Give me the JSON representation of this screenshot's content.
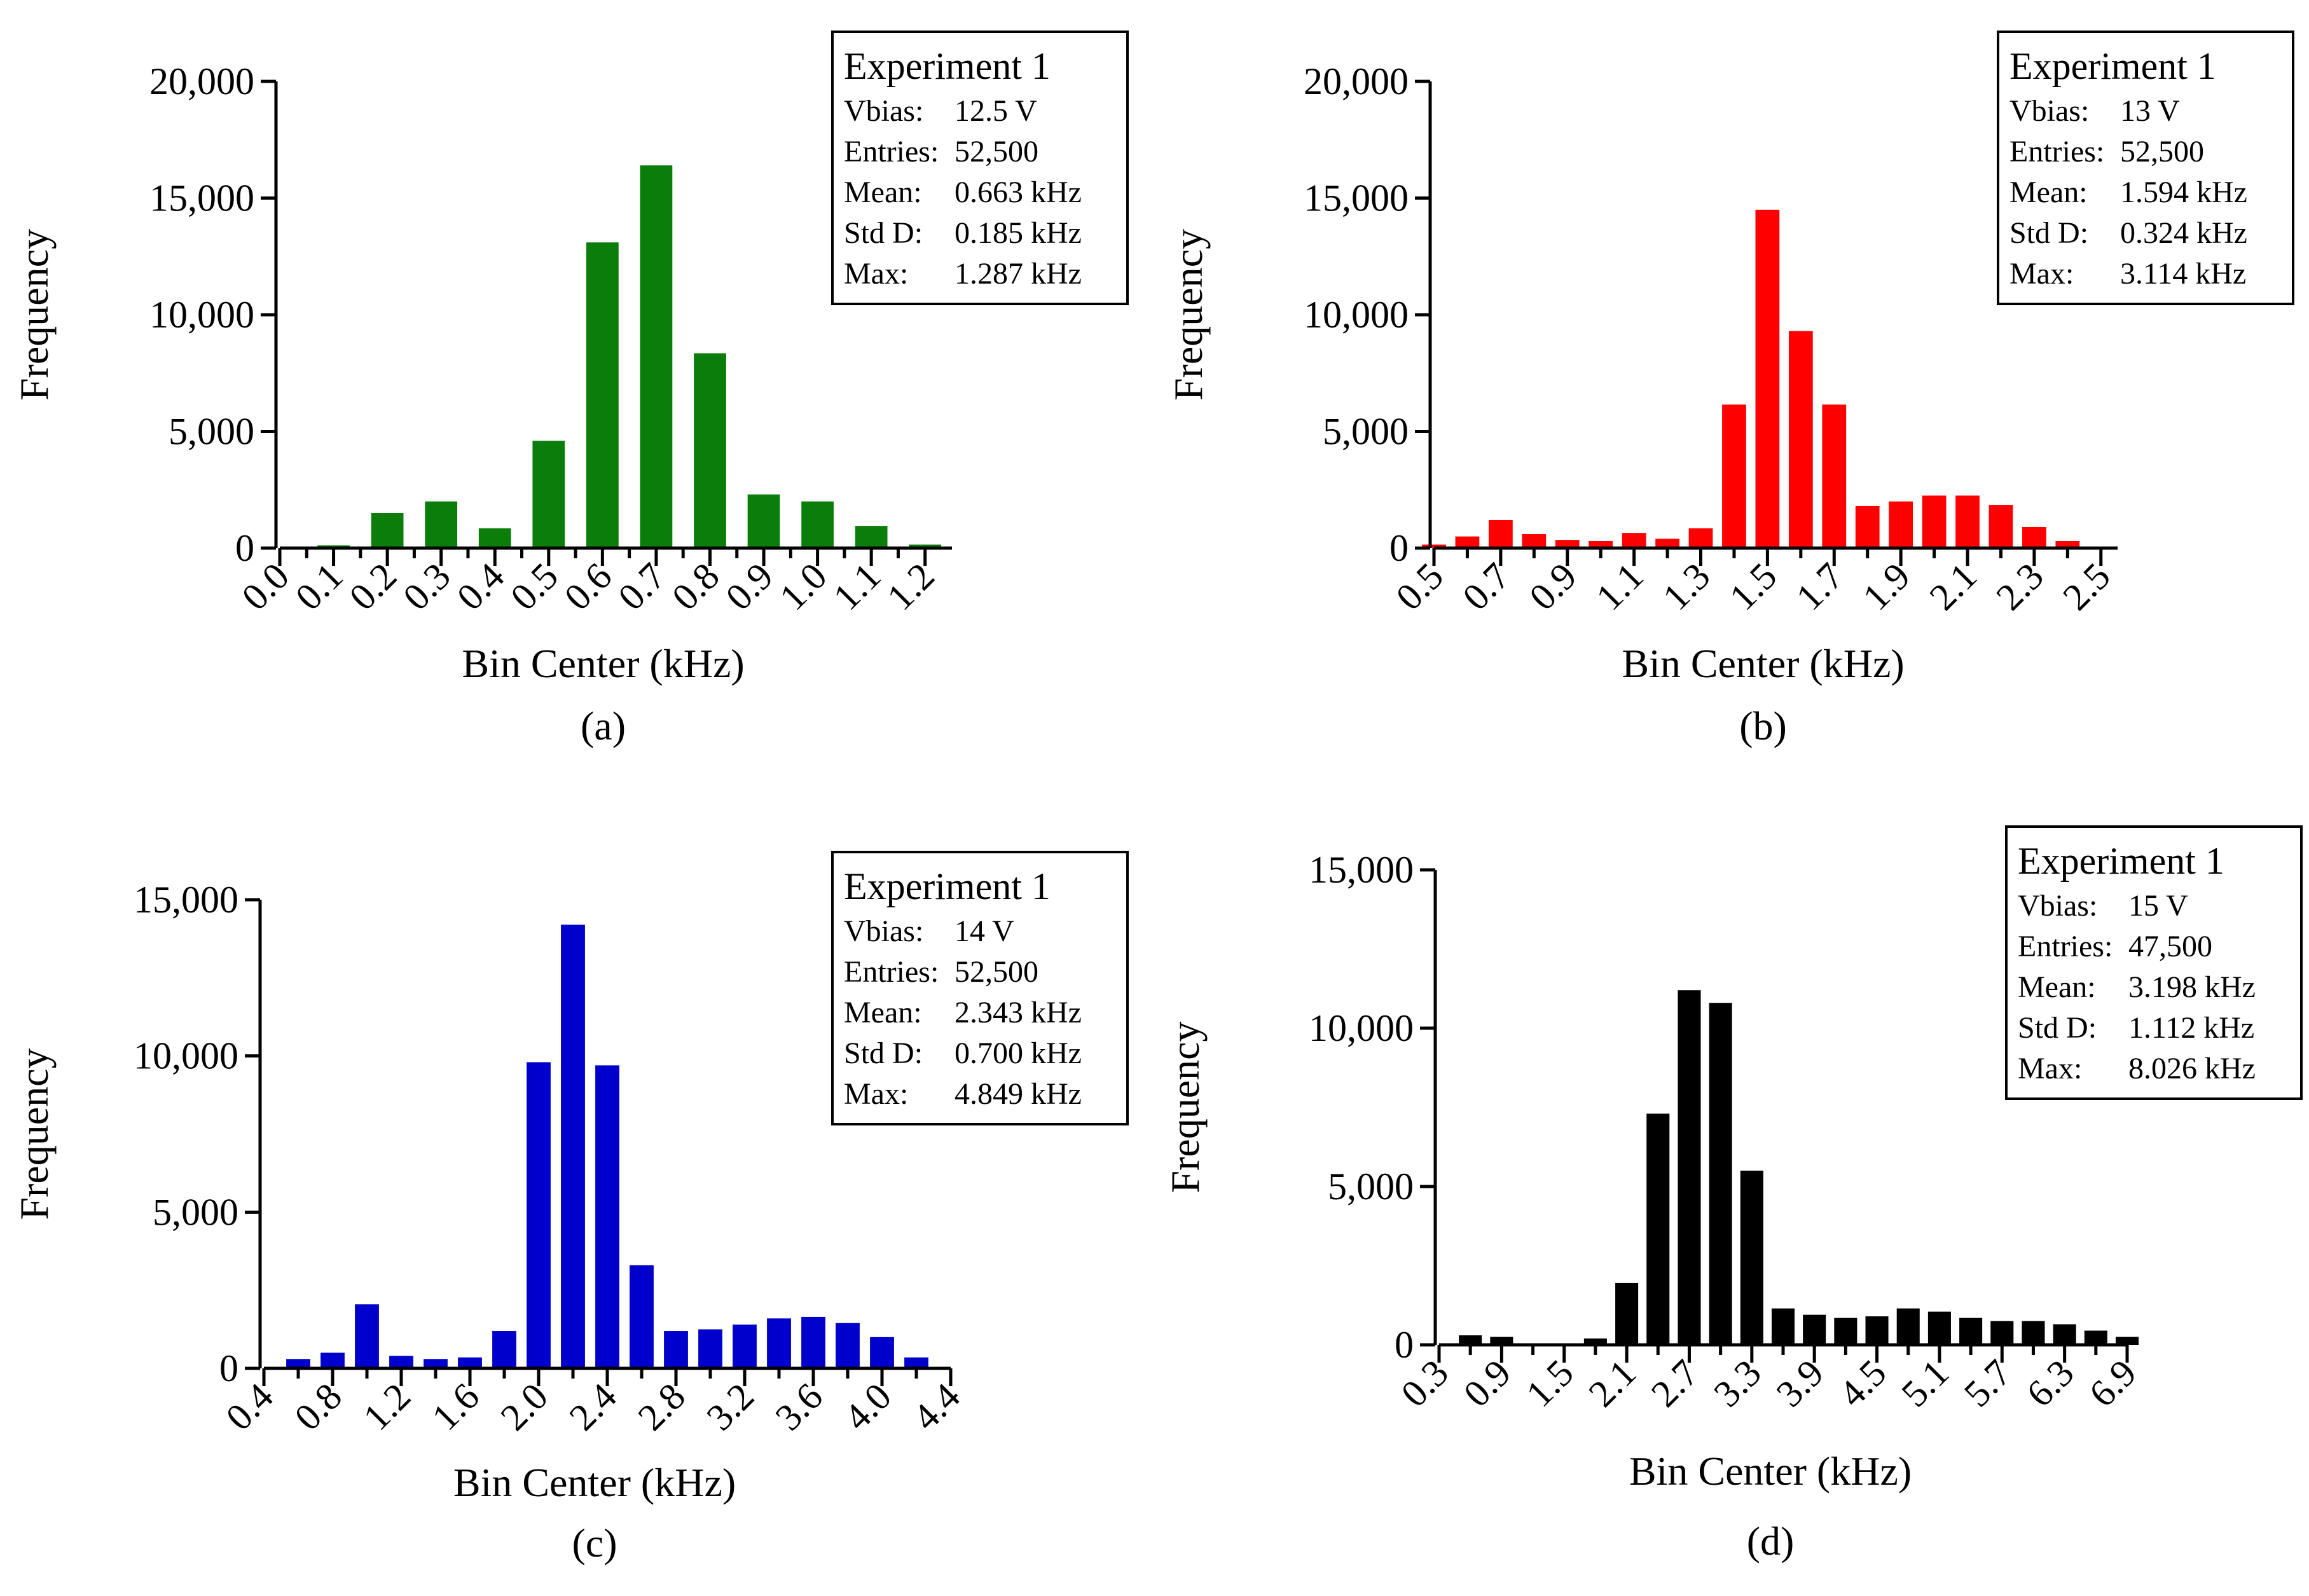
{
  "chart_data": [
    {
      "id": "a",
      "type": "bar",
      "panel_label": "(a)",
      "xlabel": "Bin Center (kHz)",
      "ylabel": "Frequency",
      "ylim": [
        0,
        20000
      ],
      "y_ticks": [
        "0",
        "5,000",
        "10,000",
        "15,000",
        "20,000"
      ],
      "x_ticks": [
        "0.0",
        "0.1",
        "0.2",
        "0.3",
        "0.4",
        "0.5",
        "0.6",
        "0.7",
        "0.8",
        "0.9",
        "1.0",
        "1.1",
        "1.2"
      ],
      "series": [
        {
          "name": "Experiment 1",
          "color": "#0a7d0a",
          "x": [
            0.1,
            0.2,
            0.3,
            0.4,
            0.5,
            0.6,
            0.7,
            0.8,
            0.9,
            1.0,
            1.1,
            1.2
          ],
          "values": [
            120,
            1500,
            2000,
            850,
            4600,
            13100,
            16400,
            8350,
            2300,
            2000,
            950,
            150
          ]
        }
      ],
      "stats": {
        "title": "Experiment 1",
        "rows": [
          {
            "label": "Vbias:",
            "value": "12.5 V"
          },
          {
            "label": "Entries:",
            "value": "52,500"
          },
          {
            "label": "Mean:",
            "value": "0.663 kHz"
          },
          {
            "label": "Std D:",
            "value": "0.185 kHz"
          },
          {
            "label": "Max:",
            "value": "1.287 kHz"
          }
        ]
      }
    },
    {
      "id": "b",
      "type": "bar",
      "panel_label": "(b)",
      "xlabel": "Bin Center (kHz)",
      "ylabel": "Frequency",
      "ylim": [
        0,
        20000
      ],
      "y_ticks": [
        "0",
        "5,000",
        "10,000",
        "15,000",
        "20,000"
      ],
      "x_ticks": [
        "0.5",
        "0.7",
        "0.9",
        "1.1",
        "1.3",
        "1.5",
        "1.7",
        "1.9",
        "2.1",
        "2.3",
        "2.5"
      ],
      "series": [
        {
          "name": "Experiment 1",
          "color": "#ff0000",
          "x": [
            0.5,
            0.6,
            0.7,
            0.8,
            0.9,
            1.0,
            1.1,
            1.2,
            1.3,
            1.4,
            1.5,
            1.6,
            1.7,
            1.8,
            1.9,
            2.0,
            2.1,
            2.2,
            2.3,
            2.4
          ],
          "values": [
            150,
            500,
            1200,
            600,
            350,
            300,
            650,
            400,
            850,
            6150,
            14500,
            9300,
            6150,
            1800,
            2000,
            2250,
            2250,
            1850,
            900,
            300
          ]
        }
      ],
      "stats": {
        "title": "Experiment 1",
        "rows": [
          {
            "label": "Vbias:",
            "value": "13 V"
          },
          {
            "label": "Entries:",
            "value": "52,500"
          },
          {
            "label": "Mean:",
            "value": "1.594 kHz"
          },
          {
            "label": "Std D:",
            "value": "0.324 kHz"
          },
          {
            "label": "Max:",
            "value": "3.114 kHz"
          }
        ]
      }
    },
    {
      "id": "c",
      "type": "bar",
      "panel_label": "(c)",
      "xlabel": "Bin Center (kHz)",
      "ylabel": "Frequency",
      "ylim": [
        0,
        15000
      ],
      "y_ticks": [
        "0",
        "5,000",
        "10,000",
        "15,000"
      ],
      "x_ticks": [
        "0.4",
        "0.8",
        "1.2",
        "1.6",
        "2.0",
        "2.4",
        "2.8",
        "3.2",
        "3.6",
        "4.0",
        "4.4"
      ],
      "series": [
        {
          "name": "Experiment 1",
          "color": "#0000cc",
          "x": [
            0.6,
            0.8,
            1.0,
            1.2,
            1.4,
            1.6,
            1.8,
            2.0,
            2.2,
            2.4,
            2.6,
            2.8,
            3.0,
            3.2,
            3.4,
            3.6,
            3.8,
            4.0,
            4.2
          ],
          "values": [
            300,
            500,
            2050,
            400,
            300,
            350,
            1200,
            9800,
            14200,
            9700,
            3300,
            1200,
            1250,
            1400,
            1600,
            1650,
            1450,
            1000,
            350
          ]
        }
      ],
      "stats": {
        "title": "Experiment 1",
        "rows": [
          {
            "label": "Vbias:",
            "value": "14 V"
          },
          {
            "label": "Entries:",
            "value": "52,500"
          },
          {
            "label": "Mean:",
            "value": "2.343 kHz"
          },
          {
            "label": "Std D:",
            "value": "0.700 kHz"
          },
          {
            "label": "Max:",
            "value": "4.849 kHz"
          }
        ]
      }
    },
    {
      "id": "d",
      "type": "bar",
      "panel_label": "(d)",
      "xlabel": "Bin Center (kHz)",
      "ylabel": "Frequency",
      "ylim": [
        0,
        15000
      ],
      "y_ticks": [
        "0",
        "5,000",
        "10,000",
        "15,000"
      ],
      "x_ticks": [
        "0.3",
        "0.9",
        "1.5",
        "2.1",
        "2.7",
        "3.3",
        "3.9",
        "4.5",
        "5.1",
        "5.7",
        "6.3",
        "6.9"
      ],
      "series": [
        {
          "name": "Experiment 1",
          "color": "#000000",
          "x": [
            0.6,
            0.9,
            1.2,
            1.5,
            1.8,
            2.1,
            2.4,
            2.7,
            3.0,
            3.3,
            3.6,
            3.9,
            4.2,
            4.5,
            4.8,
            5.1,
            5.4,
            5.7,
            6.0,
            6.3,
            6.6,
            6.9
          ],
          "values": [
            300,
            250,
            50,
            50,
            200,
            1950,
            7300,
            11200,
            10800,
            5500,
            1150,
            950,
            850,
            900,
            1150,
            1050,
            850,
            750,
            750,
            650,
            450,
            250
          ]
        }
      ],
      "stats": {
        "title": "Experiment 1",
        "rows": [
          {
            "label": "Vbias:",
            "value": "15 V"
          },
          {
            "label": "Entries:",
            "value": "47,500"
          },
          {
            "label": "Mean:",
            "value": "3.198 kHz"
          },
          {
            "label": "Std D:",
            "value": "1.112 kHz"
          },
          {
            "label": "Max:",
            "value": "8.026 kHz"
          }
        ]
      }
    }
  ]
}
